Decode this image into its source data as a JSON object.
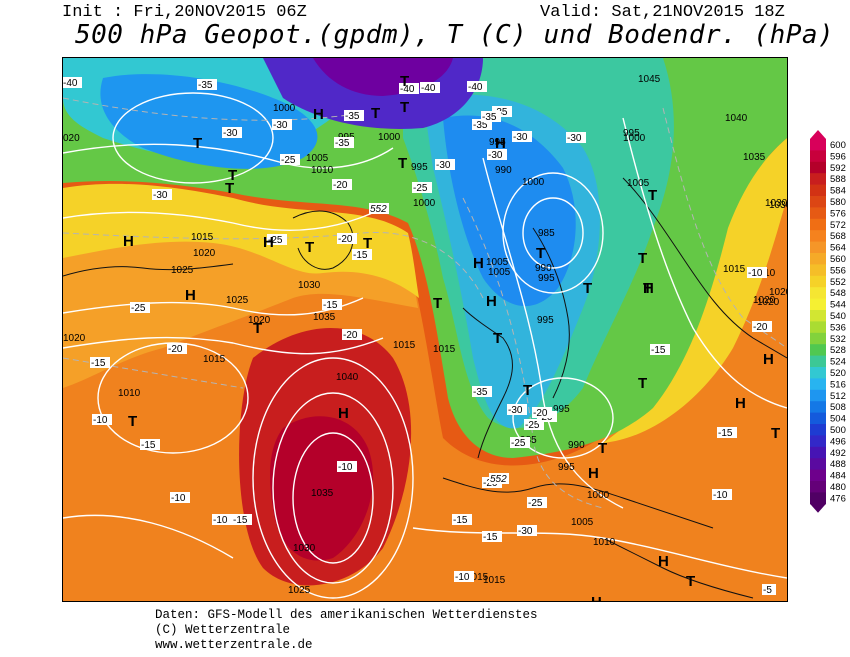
{
  "header": {
    "init_label": "Init : Fri,20NOV2015 06Z",
    "valid_label": "Valid: Sat,21NOV2015 18Z",
    "title": "500 hPa Geopot.(gpdm), T (C) und Bodendr. (hPa)"
  },
  "footer": {
    "line1": "Daten: GFS-Modell des amerikanischen Wetterdienstes",
    "line2": "(C) Wetterzentrale",
    "line3": "www.wetterzentrale.de"
  },
  "colorbar": {
    "values": [
      "600",
      "596",
      "592",
      "588",
      "584",
      "580",
      "576",
      "572",
      "568",
      "564",
      "560",
      "556",
      "552",
      "548",
      "544",
      "540",
      "536",
      "532",
      "528",
      "524",
      "520",
      "516",
      "512",
      "508",
      "504",
      "500",
      "496",
      "492",
      "488",
      "484",
      "480",
      "476"
    ],
    "colors": [
      "#d8005a",
      "#c8003c",
      "#b4002a",
      "#c81e1e",
      "#d23214",
      "#dc4614",
      "#e65a14",
      "#f06e14",
      "#f5821e",
      "#f59628",
      "#f5aa28",
      "#f5be28",
      "#f5d228",
      "#f5e632",
      "#f5f032",
      "#d2e632",
      "#aadc32",
      "#82d23c",
      "#50c850",
      "#3cc896",
      "#32c8d2",
      "#28b4f0",
      "#1e96f0",
      "#1478e6",
      "#145adc",
      "#1e3cd2",
      "#3228c8",
      "#4614b4",
      "#5a0aa0",
      "#6e008c",
      "#640078",
      "#500064"
    ]
  },
  "pressure_labels": [
    {
      "text": "1000"
    },
    {
      "text": "995"
    },
    {
      "text": "1000"
    },
    {
      "text": "995"
    },
    {
      "text": "1005"
    },
    {
      "text": "1010"
    },
    {
      "text": "995"
    },
    {
      "text": "990"
    },
    {
      "text": "1000"
    },
    {
      "text": "1045"
    },
    {
      "text": "1040"
    },
    {
      "text": "1035"
    },
    {
      "text": "1030"
    },
    {
      "text": "1005"
    },
    {
      "text": "1000"
    },
    {
      "text": "1015"
    },
    {
      "text": "1020"
    },
    {
      "text": "1025"
    },
    {
      "text": "1025"
    },
    {
      "text": "1020"
    },
    {
      "text": "1015"
    },
    {
      "text": "1010"
    },
    {
      "text": "1030"
    },
    {
      "text": "1035"
    },
    {
      "text": "1040"
    },
    {
      "text": "1035"
    },
    {
      "text": "1030"
    },
    {
      "text": "1025"
    },
    {
      "text": "1015"
    },
    {
      "text": "1015"
    },
    {
      "text": "1005"
    },
    {
      "text": "985"
    },
    {
      "text": "990"
    },
    {
      "text": "995"
    },
    {
      "text": "995"
    },
    {
      "text": "995"
    },
    {
      "text": "985"
    },
    {
      "text": "990"
    },
    {
      "text": "995"
    },
    {
      "text": "1000"
    },
    {
      "text": "1005"
    },
    {
      "text": "1010"
    },
    {
      "text": "1015"
    },
    {
      "text": "1020"
    },
    {
      "text": "1010"
    },
    {
      "text": "1020"
    },
    {
      "text": "1000"
    },
    {
      "text": "995"
    },
    {
      "text": "1015"
    },
    {
      "text": "1005"
    },
    {
      "text": "1015"
    },
    {
      "text": "1020"
    }
  ],
  "temp_labels": [
    {
      "text": "-40"
    },
    {
      "text": "-35"
    },
    {
      "text": "-30"
    },
    {
      "text": "-25"
    },
    {
      "text": "-30"
    },
    {
      "text": "-35"
    },
    {
      "text": "-35"
    },
    {
      "text": "-40"
    },
    {
      "text": "-40"
    },
    {
      "text": "-35"
    },
    {
      "text": "-30"
    },
    {
      "text": "-35"
    },
    {
      "text": "-30"
    },
    {
      "text": "-30"
    },
    {
      "text": "-25"
    },
    {
      "text": "-20"
    },
    {
      "text": "-25"
    },
    {
      "text": "-20"
    },
    {
      "text": "-15"
    },
    {
      "text": "-20"
    },
    {
      "text": "-25"
    },
    {
      "text": "-30"
    },
    {
      "text": "-40"
    },
    {
      "text": "-35"
    },
    {
      "text": "-30"
    },
    {
      "text": "-35"
    },
    {
      "text": "-30"
    },
    {
      "text": "-25"
    },
    {
      "text": "-20"
    },
    {
      "text": "-15"
    },
    {
      "text": "-15"
    },
    {
      "text": "-20"
    },
    {
      "text": "-15"
    },
    {
      "text": "-10"
    },
    {
      "text": "-15"
    },
    {
      "text": "-10"
    },
    {
      "text": "-10"
    },
    {
      "text": "-10"
    },
    {
      "text": "-15"
    },
    {
      "text": "-10"
    },
    {
      "text": "-15"
    },
    {
      "text": "-20"
    },
    {
      "text": "-25"
    },
    {
      "text": "-30"
    },
    {
      "text": "-15"
    },
    {
      "text": "-10"
    },
    {
      "text": "-15"
    },
    {
      "text": "-20"
    },
    {
      "text": "-10"
    },
    {
      "text": "-5"
    },
    {
      "text": "-25"
    },
    {
      "text": "-20"
    }
  ],
  "geopot_labels": [
    {
      "text": "552"
    },
    {
      "text": "552"
    }
  ],
  "high_low_markers": [
    "H",
    "H",
    "H",
    "H",
    "H",
    "H",
    "H",
    "H",
    "H",
    "H",
    "H",
    "H",
    "H",
    "H",
    "T",
    "T",
    "T",
    "T",
    "T",
    "T",
    "T",
    "T",
    "T",
    "T",
    "T",
    "T",
    "T",
    "T",
    "T",
    "T",
    "T",
    "T",
    "T",
    "T",
    "T",
    "T",
    "T"
  ],
  "edge_labels": [
    "020",
    "1030",
    "1020"
  ]
}
